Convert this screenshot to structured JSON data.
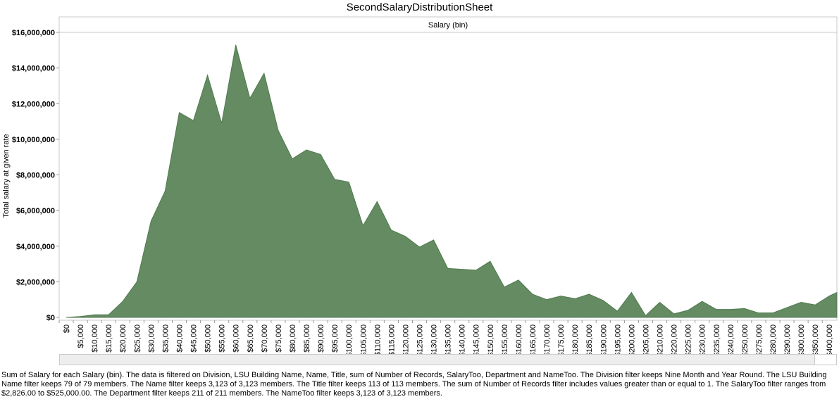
{
  "title": "SecondSalaryDistributionSheet",
  "caption": "Sum of Salary for each Salary (bin). The data is filtered on Division, LSU Building Name, Name, Title, sum of Number of Records, SalaryToo, Department and NameToo. The Division filter keeps Nine Month and Year Round. The LSU Building Name filter keeps 79 of 79 members. The Name filter keeps 3,123 of 3,123 members. The Title filter keeps 113 of 113 members. The sum of Number of Records filter includes values greater than or equal to 1. The SalaryToo filter ranges from $2,826.00 to $525,000.00. The Department filter keeps 211 of 211 members. The NameToo filter keeps 3,123 of 3,123 members.",
  "chart_data": {
    "type": "area",
    "title": "SecondSalaryDistributionSheet",
    "column_header": "Salary (bin)",
    "xlabel": "Salary (bin)",
    "ylabel": "Total salary at given rate",
    "ylim": [
      0,
      16000000
    ],
    "yticks": [
      0,
      2000000,
      4000000,
      6000000,
      8000000,
      10000000,
      12000000,
      14000000,
      16000000
    ],
    "ytick_labels": [
      "$0",
      "$2,000,000",
      "$4,000,000",
      "$6,000,000",
      "$8,000,000",
      "$10,000,000",
      "$12,000,000",
      "$14,000,000",
      "$16,000,000"
    ],
    "categories": [
      "$0",
      "$5,000",
      "$10,000",
      "$15,000",
      "$20,000",
      "$25,000",
      "$30,000",
      "$35,000",
      "$40,000",
      "$45,000",
      "$50,000",
      "$55,000",
      "$60,000",
      "$65,000",
      "$70,000",
      "$75,000",
      "$80,000",
      "$85,000",
      "$90,000",
      "$95,000",
      "$100,000",
      "$105,000",
      "$110,000",
      "$115,000",
      "$120,000",
      "$125,000",
      "$130,000",
      "$135,000",
      "$140,000",
      "$145,000",
      "$150,000",
      "$155,000",
      "$160,000",
      "$165,000",
      "$170,000",
      "$175,000",
      "$180,000",
      "$185,000",
      "$190,000",
      "$195,000",
      "$200,000",
      "$205,000",
      "$210,000",
      "$220,000",
      "$225,000",
      "$230,000",
      "$235,000",
      "$240,000",
      "$250,000",
      "$275,000",
      "$280,000",
      "$290,000",
      "$300,000",
      "$350,000",
      "$400,000"
    ],
    "values": [
      0,
      50000,
      150000,
      150000,
      900000,
      2000000,
      5400000,
      7100000,
      11500000,
      11050000,
      13600000,
      10900000,
      15300000,
      12300000,
      13700000,
      10500000,
      8900000,
      9400000,
      9150000,
      7750000,
      7600000,
      5150000,
      6500000,
      4900000,
      4550000,
      3950000,
      4350000,
      2750000,
      2700000,
      2650000,
      3150000,
      1700000,
      2100000,
      1300000,
      1000000,
      1200000,
      1050000,
      1300000,
      950000,
      350000,
      1400000,
      100000,
      850000,
      200000,
      400000,
      900000,
      450000,
      450000,
      500000,
      250000,
      250000,
      550000,
      850000,
      700000,
      1200000
    ],
    "color": "#658b63",
    "grid": false
  }
}
